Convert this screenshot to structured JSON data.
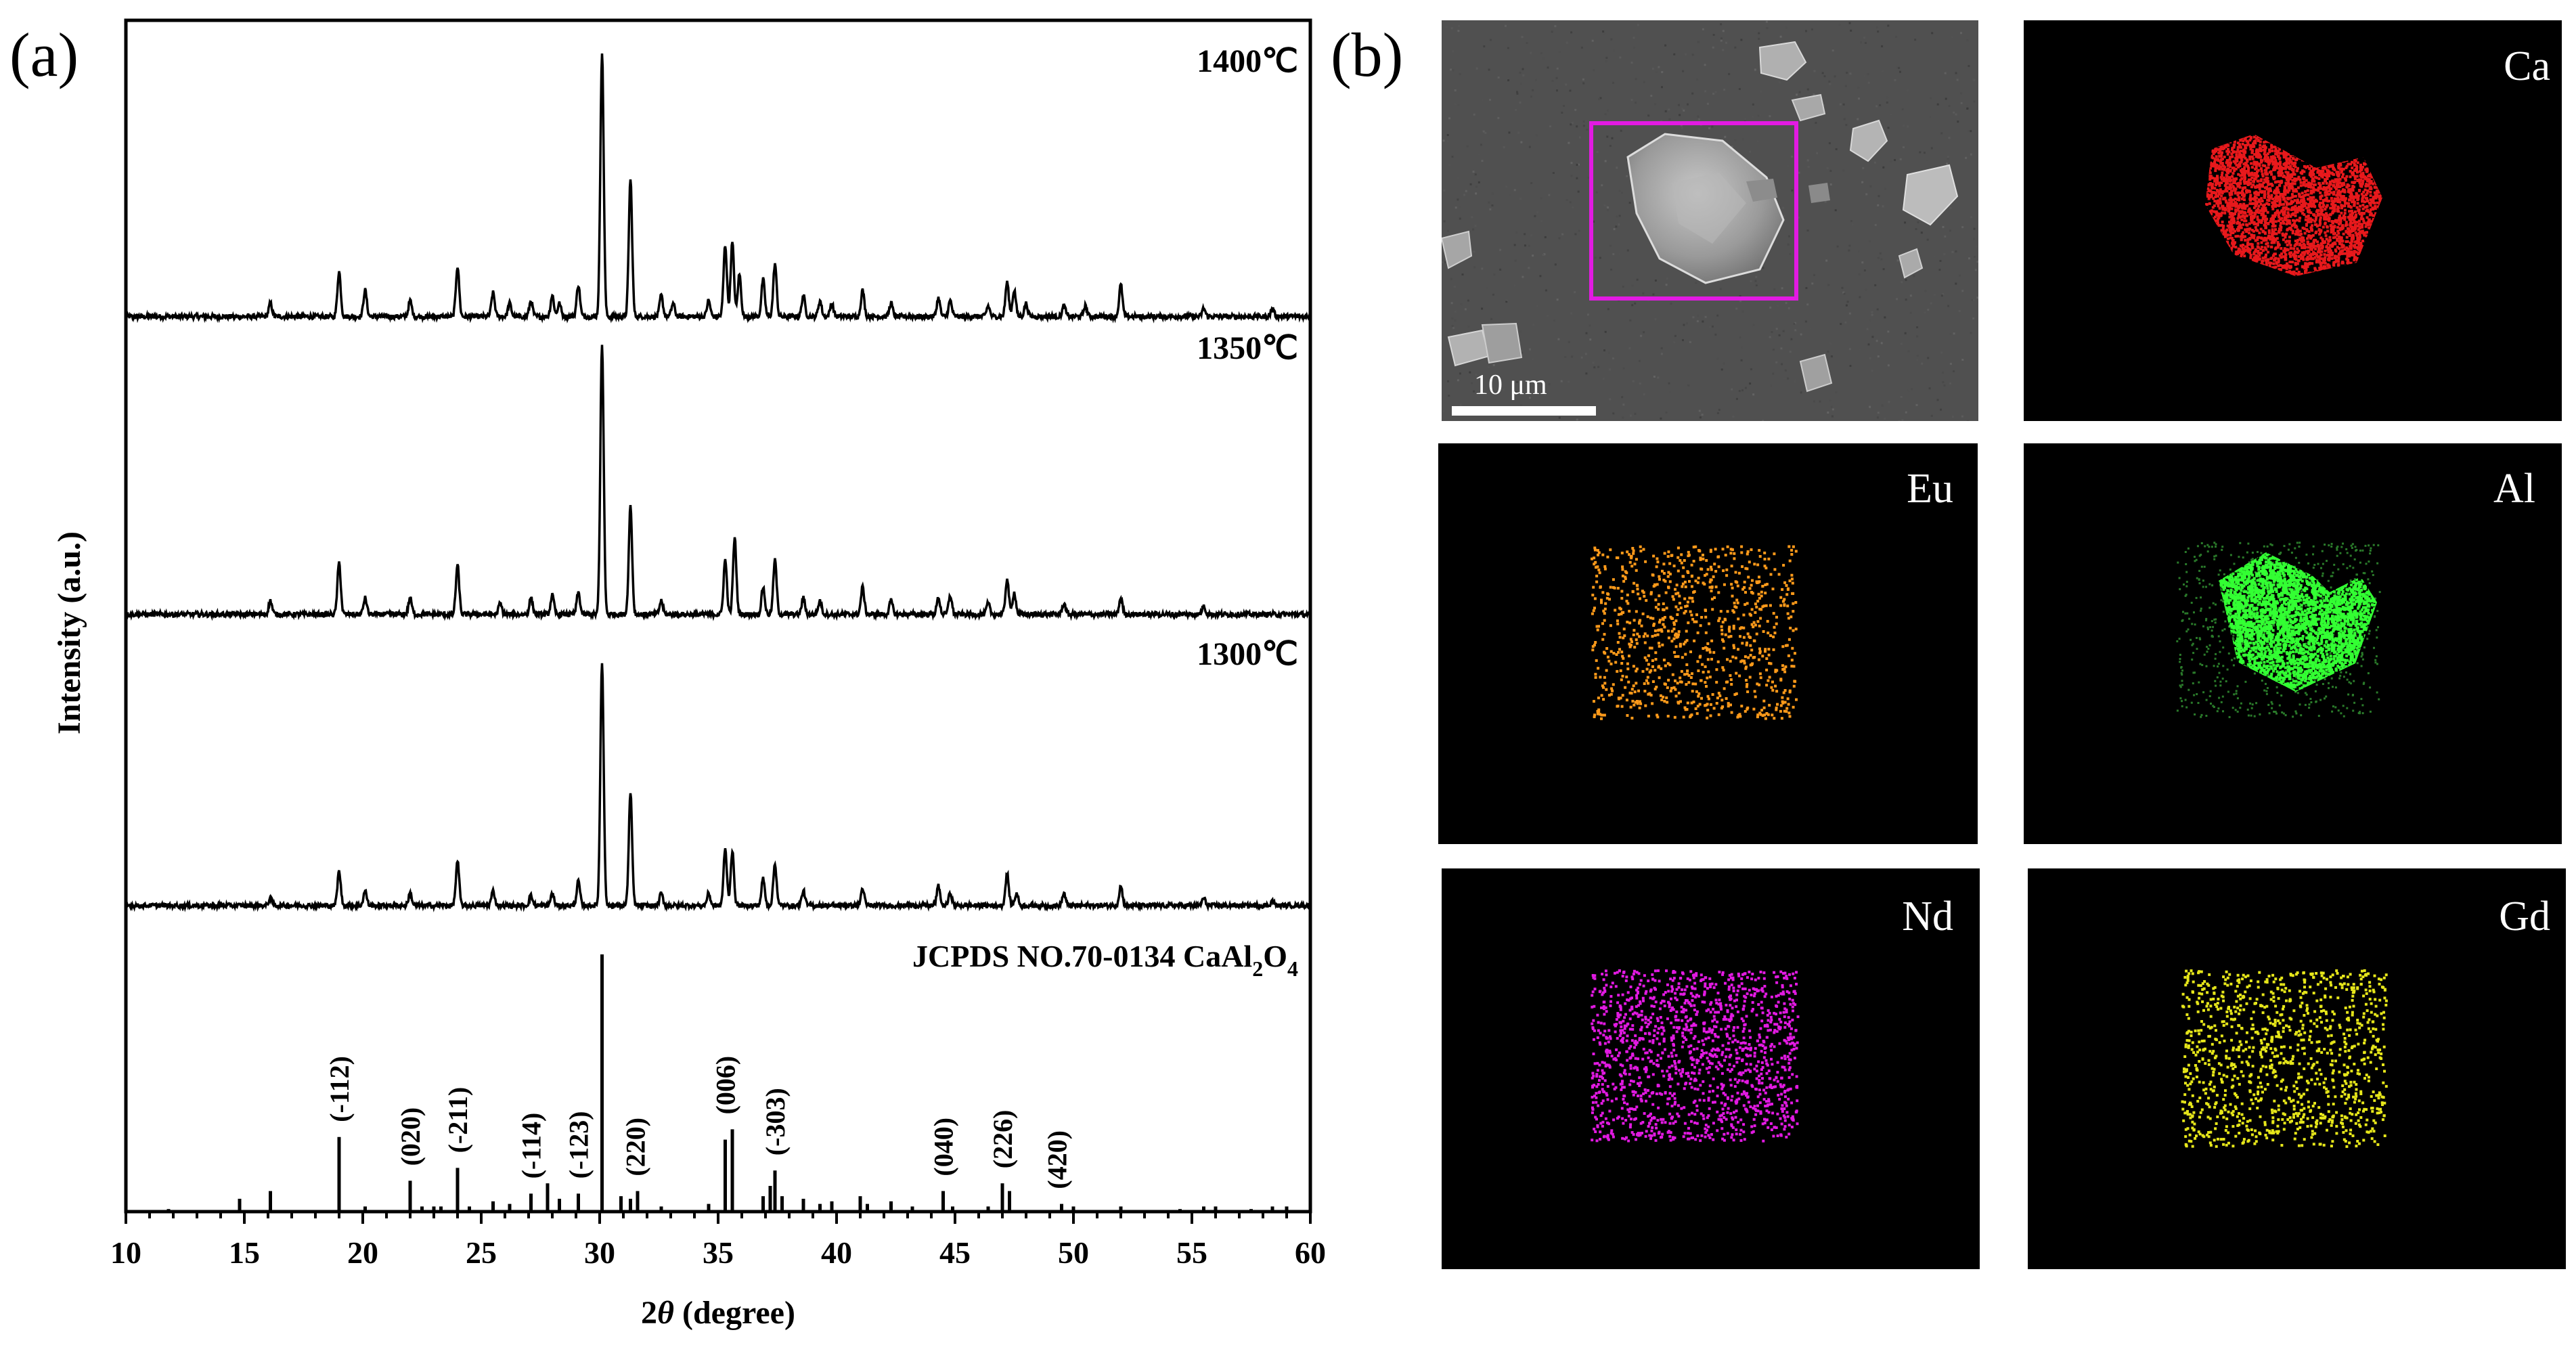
{
  "panel_a": {
    "letter": "(a)",
    "chart_data": {
      "type": "line",
      "xlabel_prefix": "2",
      "xlabel_theta": "θ",
      "xlabel_suffix": " (degree)",
      "ylabel": "Intensity (a.u.)",
      "xlim": [
        10,
        60
      ],
      "x_ticks": [
        10,
        15,
        20,
        25,
        30,
        35,
        40,
        45,
        50,
        55,
        60
      ],
      "series": [
        {
          "name": "1400℃",
          "peaks": [
            [
              16.1,
              0.05
            ],
            [
              19.0,
              0.17
            ],
            [
              20.1,
              0.1
            ],
            [
              22.0,
              0.06
            ],
            [
              24.0,
              0.19
            ],
            [
              25.5,
              0.09
            ],
            [
              26.2,
              0.05
            ],
            [
              27.1,
              0.06
            ],
            [
              28.0,
              0.08
            ],
            [
              28.3,
              0.05
            ],
            [
              29.1,
              0.12
            ],
            [
              30.1,
              1.0
            ],
            [
              31.3,
              0.52
            ],
            [
              32.6,
              0.08
            ],
            [
              33.1,
              0.05
            ],
            [
              34.6,
              0.06
            ],
            [
              35.3,
              0.27
            ],
            [
              35.6,
              0.28
            ],
            [
              35.9,
              0.16
            ],
            [
              36.9,
              0.14
            ],
            [
              37.4,
              0.2
            ],
            [
              38.6,
              0.08
            ],
            [
              39.3,
              0.06
            ],
            [
              39.8,
              0.05
            ],
            [
              41.1,
              0.1
            ],
            [
              42.3,
              0.05
            ],
            [
              44.3,
              0.07
            ],
            [
              44.8,
              0.06
            ],
            [
              46.4,
              0.04
            ],
            [
              47.2,
              0.13
            ],
            [
              47.5,
              0.1
            ],
            [
              48.0,
              0.05
            ],
            [
              49.6,
              0.04
            ],
            [
              50.5,
              0.04
            ],
            [
              52.0,
              0.12
            ],
            [
              55.5,
              0.03
            ],
            [
              58.4,
              0.03
            ]
          ]
        },
        {
          "name": "1350℃",
          "peaks": [
            [
              16.1,
              0.05
            ],
            [
              19.0,
              0.19
            ],
            [
              20.1,
              0.06
            ],
            [
              22.0,
              0.06
            ],
            [
              24.0,
              0.18
            ],
            [
              25.8,
              0.04
            ],
            [
              27.1,
              0.06
            ],
            [
              28.0,
              0.07
            ],
            [
              29.1,
              0.08
            ],
            [
              30.1,
              1.0
            ],
            [
              31.3,
              0.4
            ],
            [
              32.6,
              0.05
            ],
            [
              35.3,
              0.2
            ],
            [
              35.7,
              0.28
            ],
            [
              36.9,
              0.1
            ],
            [
              37.4,
              0.2
            ],
            [
              38.6,
              0.06
            ],
            [
              39.3,
              0.05
            ],
            [
              41.1,
              0.1
            ],
            [
              42.3,
              0.05
            ],
            [
              44.3,
              0.06
            ],
            [
              44.8,
              0.07
            ],
            [
              46.4,
              0.04
            ],
            [
              47.2,
              0.13
            ],
            [
              47.5,
              0.08
            ],
            [
              49.6,
              0.04
            ],
            [
              52.0,
              0.06
            ],
            [
              55.5,
              0.03
            ]
          ]
        },
        {
          "name": "1300℃",
          "peaks": [
            [
              16.1,
              0.03
            ],
            [
              19.0,
              0.14
            ],
            [
              20.1,
              0.06
            ],
            [
              22.0,
              0.05
            ],
            [
              24.0,
              0.18
            ],
            [
              25.5,
              0.06
            ],
            [
              27.1,
              0.04
            ],
            [
              28.0,
              0.05
            ],
            [
              29.1,
              0.1
            ],
            [
              30.1,
              1.0
            ],
            [
              31.3,
              0.46
            ],
            [
              32.6,
              0.05
            ],
            [
              34.6,
              0.05
            ],
            [
              35.3,
              0.23
            ],
            [
              35.6,
              0.22
            ],
            [
              36.9,
              0.11
            ],
            [
              37.4,
              0.17
            ],
            [
              38.6,
              0.06
            ],
            [
              41.1,
              0.07
            ],
            [
              44.3,
              0.08
            ],
            [
              44.8,
              0.05
            ],
            [
              47.2,
              0.13
            ],
            [
              47.6,
              0.05
            ],
            [
              49.6,
              0.05
            ],
            [
              52.0,
              0.08
            ],
            [
              55.5,
              0.03
            ],
            [
              58.4,
              0.02
            ]
          ]
        }
      ],
      "reference": {
        "label_main": "JCPDS NO.70-0134 CaAl",
        "label_sub1": "2",
        "label_mid": "O",
        "label_sub2": "4",
        "sticks": [
          [
            11.8,
            0.01
          ],
          [
            14.8,
            0.05
          ],
          [
            16.1,
            0.08
          ],
          [
            19.0,
            0.29
          ],
          [
            20.1,
            0.02
          ],
          [
            22.0,
            0.12
          ],
          [
            22.5,
            0.02
          ],
          [
            23.0,
            0.02
          ],
          [
            23.3,
            0.02
          ],
          [
            24.0,
            0.17
          ],
          [
            24.5,
            0.02
          ],
          [
            25.5,
            0.04
          ],
          [
            26.2,
            0.03
          ],
          [
            27.1,
            0.07
          ],
          [
            27.8,
            0.11
          ],
          [
            28.3,
            0.05
          ],
          [
            29.1,
            0.07
          ],
          [
            30.1,
            1.0
          ],
          [
            30.9,
            0.06
          ],
          [
            31.3,
            0.05
          ],
          [
            31.6,
            0.08
          ],
          [
            32.6,
            0.02
          ],
          [
            34.6,
            0.03
          ],
          [
            35.3,
            0.28
          ],
          [
            35.6,
            0.32
          ],
          [
            36.9,
            0.06
          ],
          [
            37.2,
            0.1
          ],
          [
            37.4,
            0.16
          ],
          [
            37.7,
            0.06
          ],
          [
            38.6,
            0.05
          ],
          [
            39.3,
            0.03
          ],
          [
            39.8,
            0.04
          ],
          [
            41.0,
            0.06
          ],
          [
            41.3,
            0.03
          ],
          [
            42.3,
            0.04
          ],
          [
            43.2,
            0.02
          ],
          [
            44.5,
            0.08
          ],
          [
            44.9,
            0.02
          ],
          [
            46.4,
            0.02
          ],
          [
            47.0,
            0.11
          ],
          [
            47.3,
            0.08
          ],
          [
            49.5,
            0.03
          ],
          [
            50.0,
            0.02
          ],
          [
            52.0,
            0.02
          ],
          [
            54.5,
            0.01
          ],
          [
            55.5,
            0.02
          ],
          [
            56.0,
            0.02
          ],
          [
            57.5,
            0.01
          ],
          [
            58.4,
            0.02
          ],
          [
            59.0,
            0.02
          ]
        ],
        "hkl": [
          {
            "label": "(-112)",
            "x": 19.0
          },
          {
            "label": "(020)",
            "x": 22.0
          },
          {
            "label": "(-211)",
            "x": 24.0
          },
          {
            "label": "(-114)",
            "x": 27.1
          },
          {
            "label": "(-123)",
            "x": 29.1
          },
          {
            "label": "(220)",
            "x": 31.5
          },
          {
            "label": "(006)",
            "x": 35.3
          },
          {
            "label": "(-303)",
            "x": 37.4
          },
          {
            "label": "(040)",
            "x": 44.5
          },
          {
            "label": "(226)",
            "x": 47.0
          },
          {
            "label": "(420)",
            "x": 49.3
          }
        ]
      }
    }
  },
  "panel_b": {
    "letter": "(b)",
    "sem": {
      "scale_label": "10 μm"
    },
    "maps": [
      {
        "element": "Ca",
        "color": "#e8191c"
      },
      {
        "element": "Eu",
        "color": "#ff9a1a"
      },
      {
        "element": "Al",
        "color": "#33ff33"
      },
      {
        "element": "Nd",
        "color": "#e21ae2"
      },
      {
        "element": "Gd",
        "color": "#e6e61a"
      }
    ]
  }
}
